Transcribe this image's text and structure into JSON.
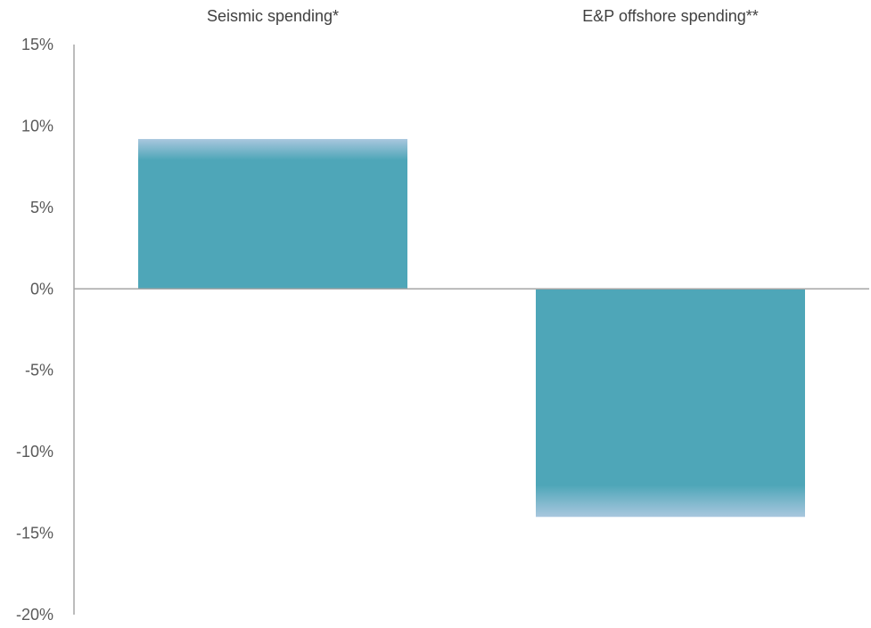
{
  "chart_data": {
    "type": "bar",
    "categories": [
      "Seismic spending*",
      "E&P offshore spending**"
    ],
    "values": [
      9.2,
      -14.0
    ],
    "ylim": [
      -20,
      15
    ],
    "yticks": [
      15,
      10,
      5,
      0,
      -5,
      -10,
      -15,
      -20
    ],
    "ytick_labels": [
      "15%",
      "10%",
      "5%",
      "0%",
      "-5%",
      "-10%",
      "-15%",
      "-20%"
    ],
    "category_label_position": "top",
    "grid": false,
    "legend": "none",
    "title": "",
    "xlabel": "",
    "ylabel": ""
  },
  "colors": {
    "bar": "#4ea6b8",
    "bar_edge_fade": "#a9c7de",
    "axis": "#a6a6a6",
    "text": "#595959"
  }
}
